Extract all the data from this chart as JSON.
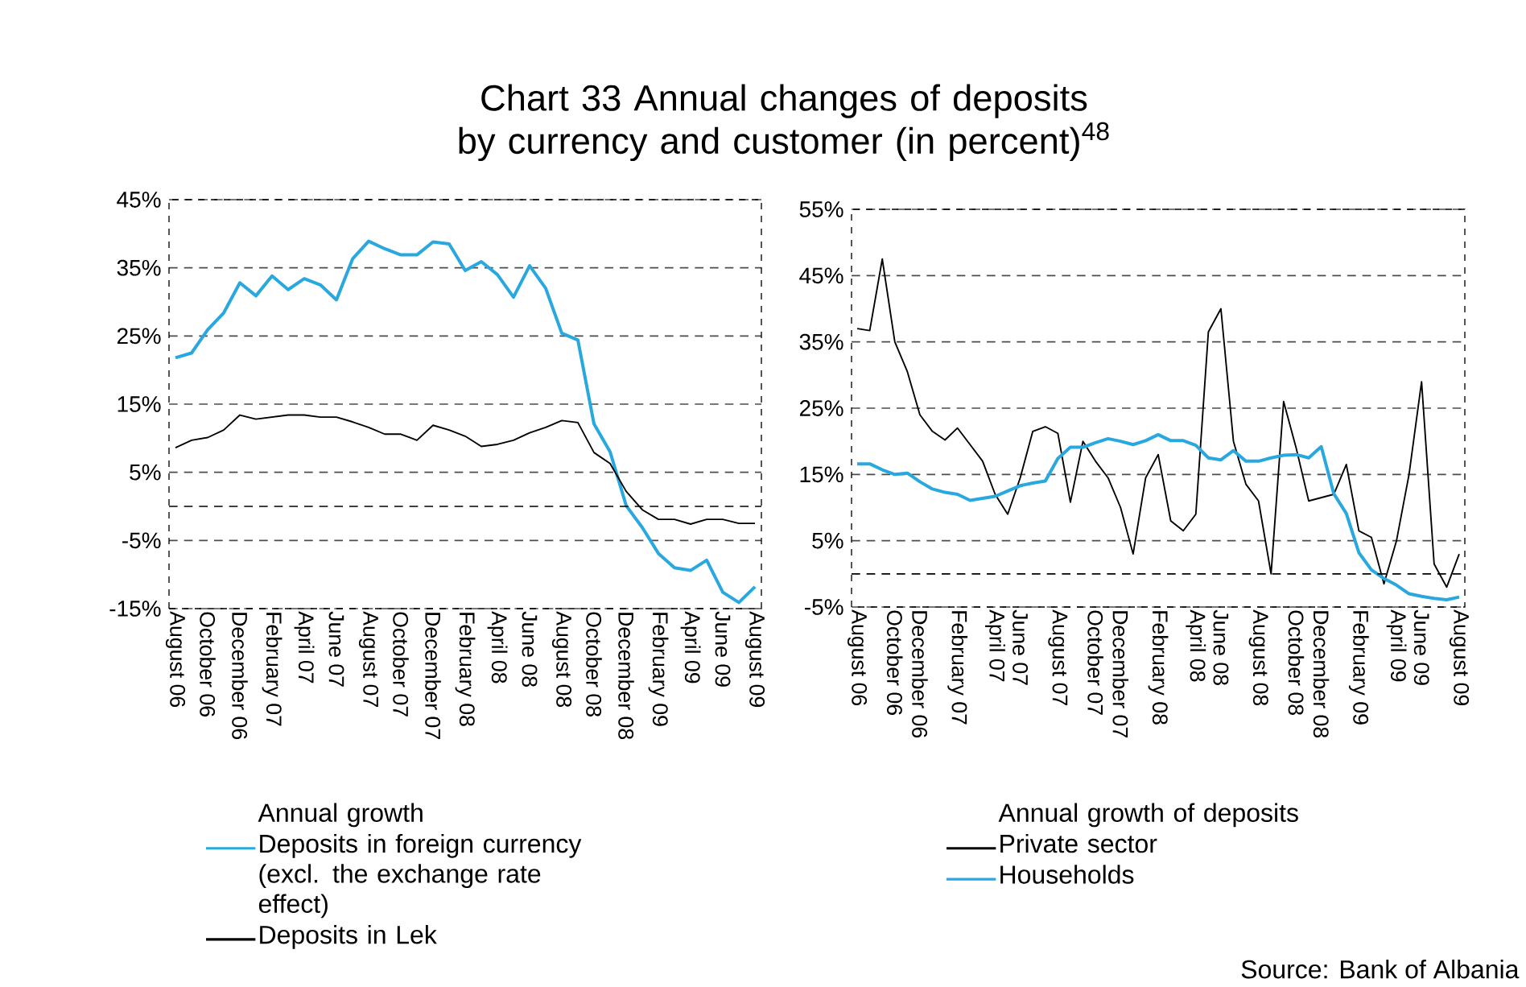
{
  "chart_data": [
    {
      "type": "line",
      "title": "Chart 33 Annual changes of deposits by currency and customer (in percent)$^{48}$",
      "categories": [
        "August 06",
        null,
        "October 06",
        null,
        "December 06",
        null,
        "February 07",
        null,
        "April 07",
        null,
        "June 07",
        null,
        "August 07",
        null,
        "October 07",
        null,
        "December 07",
        null,
        "February 08",
        null,
        "April 08",
        null,
        "June 08",
        null,
        "August 08",
        null,
        "October 08",
        null,
        "December 08",
        null,
        "February 09",
        null,
        "April 09",
        null,
        "June 09",
        null,
        "August 09"
      ],
      "series": [
        {
          "name": "Deposits in foreign currency (excl. the exchange rate effect)",
          "color": "#29a8e0",
          "values": [
            21.8,
            22.5,
            25.9,
            28.4,
            32.8,
            30.9,
            33.8,
            31.8,
            33.4,
            32.5,
            30.3,
            36.3,
            38.9,
            37.8,
            36.9,
            36.9,
            38.8,
            38.5,
            34.6,
            35.9,
            34.0,
            30.7,
            35.3,
            32.0,
            25.4,
            24.4,
            12.1,
            8.0,
            0.1,
            -3.1,
            -6.9,
            -9.0,
            -9.4,
            -7.9,
            -12.6,
            -14.1,
            -11.8
          ]
        },
        {
          "name": "Deposits in Lek",
          "color": "#000000",
          "values": [
            8.6,
            9.7,
            10.1,
            11.2,
            13.4,
            12.8,
            13.1,
            13.4,
            13.4,
            13.1,
            13.1,
            12.4,
            11.6,
            10.6,
            10.6,
            9.7,
            11.9,
            11.2,
            10.3,
            8.8,
            9.1,
            9.7,
            10.8,
            11.6,
            12.6,
            12.3,
            7.9,
            6.3,
            2.2,
            -0.5,
            -1.9,
            -1.9,
            -2.6,
            -1.9,
            -1.9,
            -2.5,
            -2.5
          ]
        }
      ],
      "ylim": [
        -15,
        45
      ],
      "yticks": [
        {
          "value": -15,
          "label": "-15%"
        },
        {
          "value": -5,
          "label": "-5%"
        },
        {
          "value": 5,
          "label": "5%"
        },
        {
          "value": 15,
          "label": "15%"
        },
        {
          "value": 25,
          "label": "25%"
        },
        {
          "value": 35,
          "label": "35%"
        },
        {
          "value": 45,
          "label": "45%"
        }
      ],
      "grid": "y",
      "legend": "bottom",
      "legend_title": "Annual growth",
      "ref_lines": [
        {
          "axis": "y",
          "value": 0
        }
      ]
    },
    {
      "type": "line",
      "categories": [
        "August 06",
        null,
        null,
        "October 06",
        null,
        "December 06",
        null,
        null,
        "February 07",
        null,
        null,
        "April 07",
        null,
        "June 07",
        null,
        null,
        "August 07",
        null,
        null,
        "October 07",
        null,
        "December 07",
        null,
        null,
        "February 08",
        null,
        null,
        "April 08",
        null,
        "June 08",
        null,
        null,
        "August 08",
        null,
        null,
        "October 08",
        null,
        "December 08",
        null,
        null,
        "February 09",
        null,
        null,
        "April 09",
        null,
        "June 09",
        null,
        null,
        "August 09"
      ],
      "series": [
        {
          "name": "Private sector",
          "color": "#000000",
          "values": [
            37,
            36.7,
            47.5,
            35,
            30.5,
            24,
            21.5,
            20.2,
            22,
            19.5,
            17,
            12,
            9,
            14.5,
            21.5,
            22.2,
            21.2,
            10.8,
            20,
            17,
            14.5,
            10,
            3,
            14.5,
            18,
            8,
            6.5,
            9,
            36.5,
            40,
            20,
            13.5,
            11,
            0,
            26,
            19,
            11,
            11.5,
            12,
            16.5,
            6.5,
            5.5,
            -1.5,
            5,
            15,
            29,
            1.5,
            -2,
            3
          ]
        },
        {
          "name": "Households",
          "color": "#29a8e0",
          "values": [
            16.6,
            16.6,
            15.7,
            15.0,
            15.2,
            13.9,
            12.8,
            12.3,
            12.0,
            11.1,
            11.4,
            11.7,
            12.5,
            13.3,
            13.7,
            14.0,
            17.4,
            19.1,
            19.1,
            19.8,
            20.4,
            20.0,
            19.5,
            20.1,
            21.0,
            20.1,
            20.1,
            19.4,
            17.5,
            17.2,
            18.6,
            17.0,
            17.0,
            17.5,
            17.9,
            18.0,
            17.5,
            19.2,
            12.1,
            9.1,
            3.2,
            0.6,
            -0.7,
            -1.7,
            -3.0,
            -3.4,
            -3.7,
            -3.9,
            -3.5
          ]
        }
      ],
      "ylim": [
        -5,
        55
      ],
      "yticks": [
        {
          "value": -5,
          "label": "-5%"
        },
        {
          "value": 5,
          "label": "5%"
        },
        {
          "value": 15,
          "label": "15%"
        },
        {
          "value": 25,
          "label": "25%"
        },
        {
          "value": 35,
          "label": "35%"
        },
        {
          "value": 45,
          "label": "45%"
        },
        {
          "value": 55,
          "label": "55%"
        }
      ],
      "grid": "y",
      "legend": "bottom",
      "legend_title": "Annual growth of deposits",
      "ref_lines": [
        {
          "axis": "y",
          "value": 0
        }
      ],
      "annotations": [
        "Source: Bank of Albania"
      ]
    }
  ]
}
